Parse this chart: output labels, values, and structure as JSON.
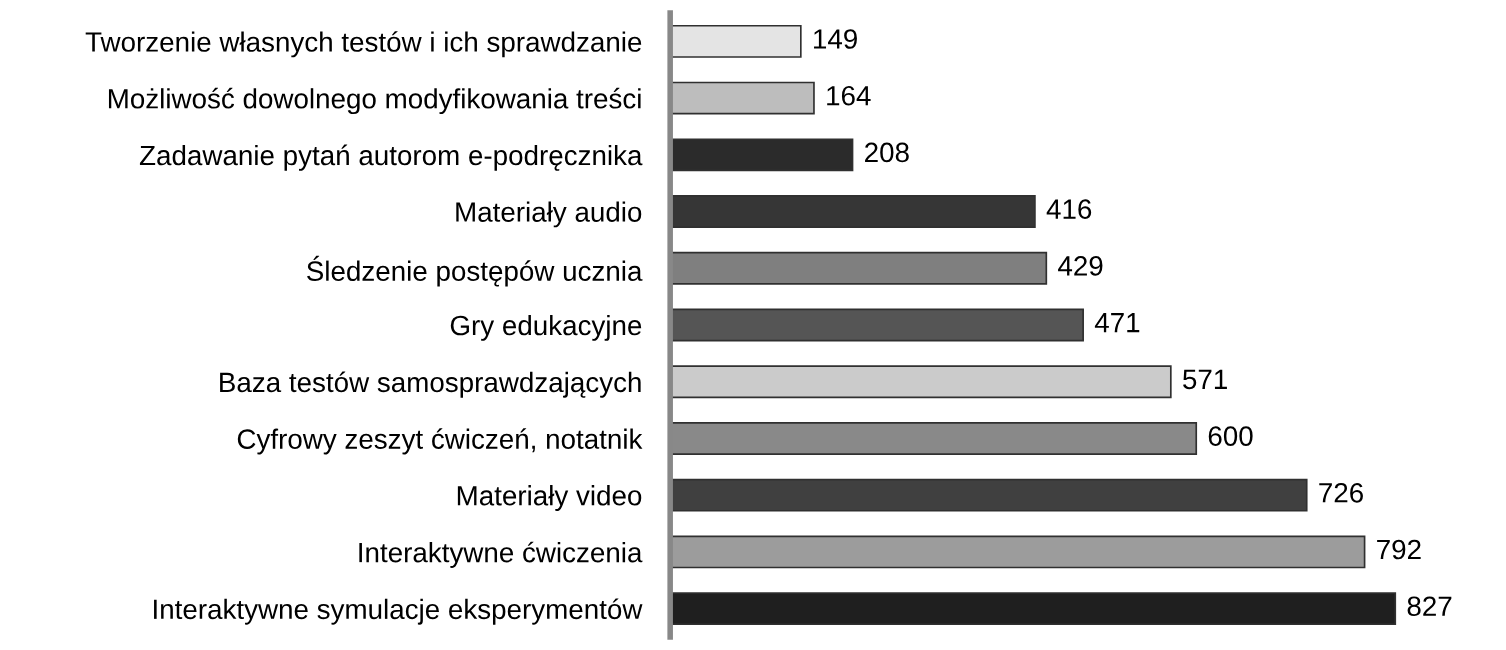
{
  "chart_data": {
    "type": "bar",
    "orientation": "horizontal",
    "data_labels": true,
    "grid": false,
    "legend": false,
    "categories": [
      "Tworzenie własnych testów i ich sprawdzanie",
      "Możliwość dowolnego modyfikowania treści",
      "Zadawanie pytań autorom e-podręcznika",
      "Materiały audio",
      "Śledzenie postępów ucznia",
      "Gry edukacyjne",
      "Baza testów samosprawdzających",
      "Cyfrowy zeszyt ćwiczeń, notatnik",
      "Materiały video",
      "Interaktywne ćwiczenia",
      "Interaktywne symulacje eksperymentów"
    ],
    "values": [
      149,
      164,
      208,
      416,
      429,
      471,
      571,
      600,
      726,
      792,
      827
    ],
    "colors": [
      "#e4e4e4",
      "#bdbdbd",
      "#2b2b2b",
      "#363636",
      "#7f7f7f",
      "#555555",
      "#cbcbcb",
      "#898989",
      "#404040",
      "#9c9c9c",
      "#1f1f1f"
    ]
  }
}
